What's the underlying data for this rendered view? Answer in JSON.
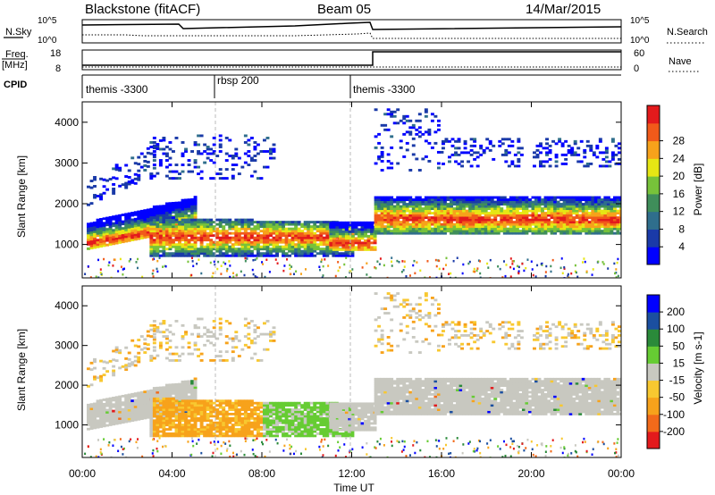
{
  "header": {
    "station": "Blackstone (fitACF)",
    "beam": "Beam 05",
    "date": "14/Mar/2015"
  },
  "noise_panel": {
    "left_label": "N.Sky",
    "right_label": "N.Search",
    "left_ticks": [
      "10^5",
      "10^0"
    ],
    "right_ticks": [
      "10^5",
      "10^0"
    ]
  },
  "freq_panel": {
    "left_label_line1": "Freq.",
    "left_label_line2": "[MHz]",
    "right_label": "Nave",
    "left_ticks": [
      "18",
      "8"
    ],
    "right_ticks": [
      "60",
      "0"
    ]
  },
  "cpid_panel": {
    "label": "CPID",
    "segments": [
      {
        "label": "themis -3300",
        "start_hour": 0,
        "end_hour": 6
      },
      {
        "label": "rbsp 200",
        "start_hour": 6,
        "end_hour": 12
      },
      {
        "label": "themis -3300",
        "start_hour": 12,
        "end_hour": 24
      }
    ]
  },
  "axes": {
    "xlabel": "Time UT",
    "ylabel_unit": "Slant Range [km]",
    "xticks": [
      "00:00",
      "04:00",
      "08:00",
      "12:00",
      "16:00",
      "20:00",
      "00:00"
    ],
    "yticks": [
      "1000",
      "2000",
      "3000",
      "4000"
    ]
  },
  "colors": {
    "power_scale": [
      "#0000ff",
      "#1a3aa8",
      "#2f6e8c",
      "#3f8e5a",
      "#77c23a",
      "#e6e614",
      "#f7a21b",
      "#f15a1a",
      "#e31a1c"
    ],
    "velocity_scale": [
      "#e31a1c",
      "#f26a1a",
      "#f7a21b",
      "#f8c830",
      "#c8c8c0",
      "#66cc33",
      "#2a8a3a",
      "#1b4fa0",
      "#0000ff"
    ]
  },
  "chart_data": [
    {
      "type": "heatmap",
      "title": "",
      "xlabel": "Time UT",
      "ylabel": "Slant Range [km]",
      "xlim": [
        0,
        24
      ],
      "ylim": [
        180,
        4500
      ],
      "colorbar_label": "Power [dB]",
      "colorbar_ticks": [
        "4",
        "8",
        "12",
        "16",
        "20",
        "24",
        "28"
      ],
      "colorbar_range": [
        0,
        30
      ],
      "features": [
        {
          "name": "main band",
          "time_range": [
            0,
            5
          ],
          "range_km": [
            900,
            1900
          ],
          "peak_db": 28
        },
        {
          "name": "mid band",
          "time_range": [
            3,
            12
          ],
          "range_km": [
            600,
            1700
          ],
          "peak_db": 26
        },
        {
          "name": "post-gap band",
          "time_range": [
            13,
            24
          ],
          "range_km": [
            1300,
            2100
          ],
          "peak_db": 24
        }
      ]
    },
    {
      "type": "heatmap",
      "title": "",
      "xlabel": "Time UT",
      "ylabel": "Slant Range [km]",
      "xlim": [
        0,
        24
      ],
      "ylim": [
        180,
        4500
      ],
      "colorbar_label": "Velocity [m s-1]",
      "colorbar_ticks": [
        "-200",
        "-100",
        "-50",
        "-15",
        "15",
        "50",
        "100",
        "200"
      ],
      "colorbar_range": [
        -250,
        250
      ],
      "features": [
        {
          "name": "ground scatter",
          "velocity": 0
        },
        {
          "name": "negative flow",
          "time_range": [
            3,
            8
          ],
          "velocity": -50
        },
        {
          "name": "positive flow",
          "time_range": [
            8,
            12
          ],
          "velocity": 50
        }
      ]
    }
  ]
}
